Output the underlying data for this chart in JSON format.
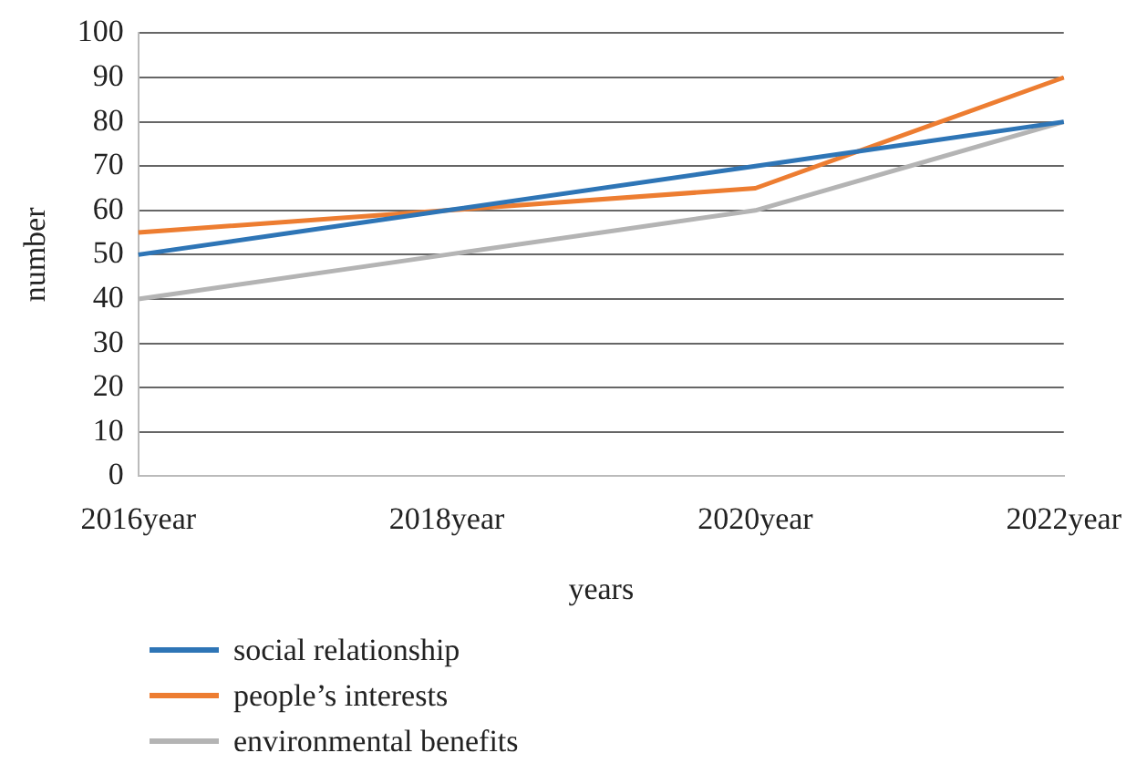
{
  "chart_data": {
    "type": "line",
    "xlabel": "years",
    "ylabel": "number",
    "categories": [
      "2016year",
      "2018year",
      "2020year",
      "2022year"
    ],
    "series": [
      {
        "name": "social relationship",
        "color": "#2e75b6",
        "values": [
          50,
          60,
          70,
          80
        ]
      },
      {
        "name": "people’s interests",
        "color": "#ed7d31",
        "values": [
          55,
          60,
          65,
          90
        ]
      },
      {
        "name": "environmental benefits",
        "color": "#b4b4b4",
        "values": [
          40,
          50,
          60,
          80
        ]
      }
    ],
    "ylim": [
      0,
      100
    ],
    "yticks": [
      0,
      10,
      20,
      30,
      40,
      50,
      60,
      70,
      80,
      90,
      100
    ],
    "grid": "y",
    "legend": "bottom",
    "marker": "none",
    "line_style": "solid"
  }
}
